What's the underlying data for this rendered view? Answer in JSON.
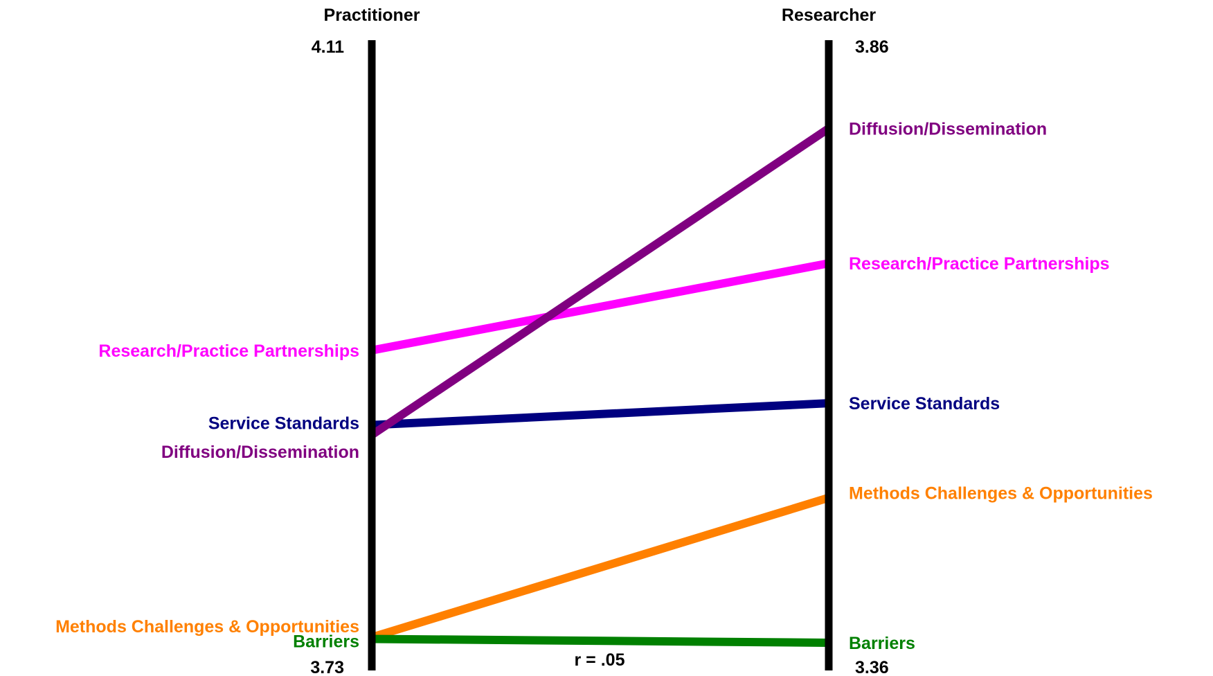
{
  "chart_data": {
    "type": "line",
    "subtype": "slope",
    "axes": [
      {
        "name": "Practitioner",
        "max": 4.11,
        "min": 3.73,
        "max_label": "4.11",
        "min_label": "3.73"
      },
      {
        "name": "Researcher",
        "max": 3.86,
        "min": 3.36,
        "max_label": "3.86",
        "min_label": "3.36"
      }
    ],
    "annotation": "r = .05",
    "grid": false,
    "legend": "none",
    "series": [
      {
        "name": "Research/Practice Partnerships",
        "color": "#ff00ff",
        "values": [
          3.923,
          3.683
        ]
      },
      {
        "name": "Service Standards",
        "color": "#000080",
        "values": [
          3.878,
          3.572
        ]
      },
      {
        "name": "Diffusion/Dissemination",
        "color": "#800080",
        "values": [
          3.872,
          3.79
        ]
      },
      {
        "name": "Methods Challenges & Opportunities",
        "color": "#ff8000",
        "values": [
          3.75,
          3.497
        ]
      },
      {
        "name": "Barriers",
        "color": "#008000",
        "values": [
          3.749,
          3.382
        ]
      }
    ]
  }
}
